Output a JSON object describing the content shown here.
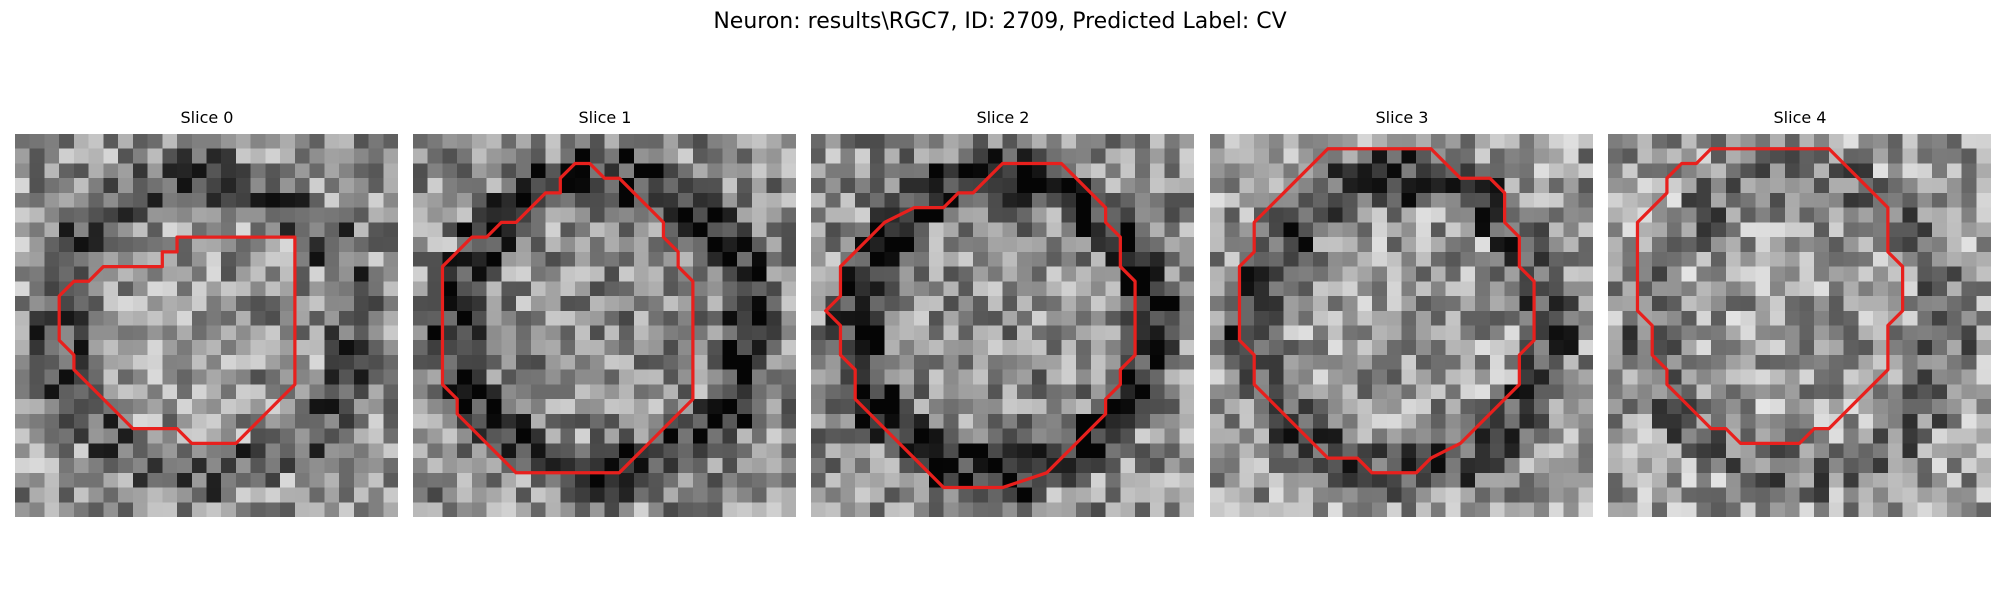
{
  "figure": {
    "title": "Neuron: results\\RGC7, ID: 2709, Predicted Label: CV"
  },
  "contour_color": "#e8201d",
  "panels": [
    {
      "title": "Slice 0",
      "seed": 11,
      "mean": 0.58,
      "darkring": 0.25,
      "outline": [
        [
          5.0,
          10.0
        ],
        [
          6.0,
          9.0
        ],
        [
          10.0,
          9.0
        ],
        [
          10.0,
          8.0
        ],
        [
          11.0,
          8.0
        ],
        [
          11.0,
          7.0
        ],
        [
          15.0,
          7.0
        ],
        [
          19.0,
          7.0
        ],
        [
          19.0,
          11.0
        ],
        [
          19.0,
          15.0
        ],
        [
          19.0,
          17.0
        ],
        [
          18.0,
          18.0
        ],
        [
          17.0,
          19.0
        ],
        [
          16.0,
          20.0
        ],
        [
          15.0,
          21.0
        ],
        [
          14.0,
          21.0
        ],
        [
          12.0,
          21.0
        ],
        [
          11.0,
          20.0
        ],
        [
          8.0,
          20.0
        ],
        [
          7.0,
          19.0
        ],
        [
          6.0,
          18.0
        ],
        [
          5.0,
          17.0
        ],
        [
          4.0,
          16.0
        ],
        [
          4.0,
          15.0
        ],
        [
          3.0,
          14.0
        ],
        [
          3.0,
          11.0
        ],
        [
          4.0,
          10.0
        ]
      ]
    },
    {
      "title": "Slice 1",
      "seed": 23,
      "mean": 0.55,
      "darkring": 0.32,
      "outline": [
        [
          10.0,
          3.0
        ],
        [
          11.0,
          2.0
        ],
        [
          12.0,
          2.0
        ],
        [
          13.0,
          3.0
        ],
        [
          14.0,
          3.0
        ],
        [
          15.0,
          4.0
        ],
        [
          16.0,
          5.0
        ],
        [
          17.0,
          6.0
        ],
        [
          17.0,
          7.0
        ],
        [
          18.0,
          8.0
        ],
        [
          18.0,
          9.0
        ],
        [
          19.0,
          10.0
        ],
        [
          19.0,
          14.0
        ],
        [
          19.0,
          18.0
        ],
        [
          18.0,
          19.0
        ],
        [
          17.0,
          20.0
        ],
        [
          16.0,
          21.0
        ],
        [
          15.0,
          22.0
        ],
        [
          14.0,
          23.0
        ],
        [
          13.0,
          23.0
        ],
        [
          11.0,
          23.0
        ],
        [
          7.0,
          23.0
        ],
        [
          6.0,
          22.0
        ],
        [
          5.0,
          21.0
        ],
        [
          4.0,
          20.0
        ],
        [
          3.0,
          19.0
        ],
        [
          3.0,
          18.0
        ],
        [
          2.0,
          17.0
        ],
        [
          2.0,
          13.0
        ],
        [
          2.0,
          9.0
        ],
        [
          3.0,
          8.0
        ],
        [
          4.0,
          7.0
        ],
        [
          5.0,
          7.0
        ],
        [
          6.0,
          6.0
        ],
        [
          7.0,
          6.0
        ],
        [
          8.0,
          5.0
        ],
        [
          9.0,
          4.0
        ],
        [
          10.0,
          4.0
        ]
      ]
    },
    {
      "title": "Slice 2",
      "seed": 37,
      "mean": 0.55,
      "darkring": 0.35,
      "outline": [
        [
          11.0,
          4.0
        ],
        [
          12.0,
          3.0
        ],
        [
          13.0,
          2.0
        ],
        [
          17.0,
          2.0
        ],
        [
          18.0,
          3.0
        ],
        [
          19.0,
          4.0
        ],
        [
          20.0,
          5.0
        ],
        [
          20.0,
          6.0
        ],
        [
          21.0,
          7.0
        ],
        [
          21.0,
          9.0
        ],
        [
          22.0,
          10.0
        ],
        [
          22.0,
          13.0
        ],
        [
          22.0,
          15.0
        ],
        [
          21.0,
          16.0
        ],
        [
          21.0,
          17.0
        ],
        [
          20.0,
          18.0
        ],
        [
          20.0,
          19.0
        ],
        [
          19.0,
          20.0
        ],
        [
          18.0,
          21.0
        ],
        [
          17.0,
          22.0
        ],
        [
          16.0,
          23.0
        ],
        [
          13.0,
          24.0
        ],
        [
          9.0,
          24.0
        ],
        [
          8.0,
          23.0
        ],
        [
          7.0,
          22.0
        ],
        [
          6.0,
          21.0
        ],
        [
          5.0,
          20.0
        ],
        [
          4.0,
          19.0
        ],
        [
          3.0,
          18.0
        ],
        [
          3.0,
          16.0
        ],
        [
          2.0,
          15.0
        ],
        [
          2.0,
          13.0
        ],
        [
          1.0,
          12.0
        ],
        [
          2.0,
          11.0
        ],
        [
          2.0,
          9.0
        ],
        [
          3.0,
          8.0
        ],
        [
          4.0,
          7.0
        ],
        [
          5.0,
          6.0
        ],
        [
          7.0,
          5.0
        ],
        [
          9.0,
          5.0
        ],
        [
          10.0,
          4.0
        ]
      ]
    },
    {
      "title": "Slice 3",
      "seed": 51,
      "mean": 0.6,
      "darkring": 0.3,
      "outline": [
        [
          8.0,
          1.0
        ],
        [
          13.0,
          1.0
        ],
        [
          15.0,
          1.0
        ],
        [
          16.0,
          2.0
        ],
        [
          17.0,
          3.0
        ],
        [
          19.0,
          3.0
        ],
        [
          20.0,
          4.0
        ],
        [
          20.0,
          6.0
        ],
        [
          21.0,
          7.0
        ],
        [
          21.0,
          9.0
        ],
        [
          22.0,
          10.0
        ],
        [
          22.0,
          14.0
        ],
        [
          21.0,
          15.0
        ],
        [
          21.0,
          17.0
        ],
        [
          20.0,
          18.0
        ],
        [
          19.0,
          19.0
        ],
        [
          18.0,
          20.0
        ],
        [
          17.0,
          21.0
        ],
        [
          15.0,
          22.0
        ],
        [
          14.0,
          23.0
        ],
        [
          11.0,
          23.0
        ],
        [
          10.0,
          22.0
        ],
        [
          8.0,
          22.0
        ],
        [
          7.0,
          21.0
        ],
        [
          6.0,
          20.0
        ],
        [
          5.0,
          19.0
        ],
        [
          4.0,
          18.0
        ],
        [
          3.0,
          17.0
        ],
        [
          3.0,
          15.0
        ],
        [
          2.0,
          14.0
        ],
        [
          2.0,
          10.0
        ],
        [
          2.0,
          9.0
        ],
        [
          3.0,
          8.0
        ],
        [
          3.0,
          6.0
        ],
        [
          4.0,
          5.0
        ],
        [
          5.0,
          4.0
        ],
        [
          6.0,
          3.0
        ],
        [
          7.0,
          2.0
        ]
      ]
    },
    {
      "title": "Slice 4",
      "seed": 67,
      "mean": 0.62,
      "darkring": 0.18,
      "outline": [
        [
          6.0,
          2.0
        ],
        [
          7.0,
          1.0
        ],
        [
          11.0,
          1.0
        ],
        [
          15.0,
          1.0
        ],
        [
          16.0,
          2.0
        ],
        [
          17.0,
          3.0
        ],
        [
          18.0,
          4.0
        ],
        [
          19.0,
          5.0
        ],
        [
          19.0,
          8.0
        ],
        [
          20.0,
          9.0
        ],
        [
          20.0,
          12.0
        ],
        [
          19.0,
          13.0
        ],
        [
          19.0,
          16.0
        ],
        [
          18.0,
          17.0
        ],
        [
          17.0,
          18.0
        ],
        [
          16.0,
          19.0
        ],
        [
          15.0,
          20.0
        ],
        [
          14.0,
          20.0
        ],
        [
          13.0,
          21.0
        ],
        [
          12.0,
          21.0
        ],
        [
          10.0,
          21.0
        ],
        [
          9.0,
          21.0
        ],
        [
          8.0,
          20.0
        ],
        [
          7.0,
          20.0
        ],
        [
          6.0,
          19.0
        ],
        [
          5.0,
          18.0
        ],
        [
          4.0,
          17.0
        ],
        [
          4.0,
          16.0
        ],
        [
          3.0,
          15.0
        ],
        [
          3.0,
          13.0
        ],
        [
          2.0,
          12.0
        ],
        [
          2.0,
          9.0
        ],
        [
          2.0,
          6.0
        ],
        [
          3.0,
          5.0
        ],
        [
          4.0,
          4.0
        ],
        [
          4.0,
          3.0
        ],
        [
          5.0,
          2.0
        ]
      ]
    }
  ]
}
